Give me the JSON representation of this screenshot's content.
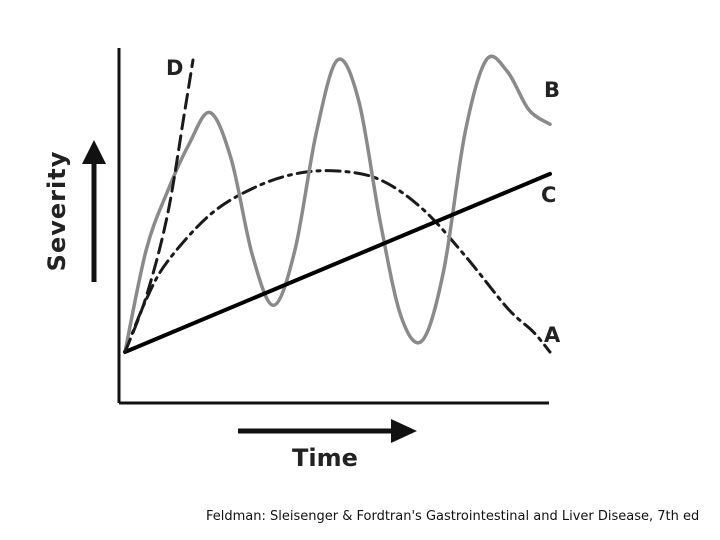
{
  "caption": "Feldman: Sleisenger & Fordtran's Gastrointestinal and Liver Disease, 7th ed",
  "chart_data": {
    "type": "line",
    "xlabel": "Time",
    "ylabel": "Severity",
    "xlim": [
      0,
      10
    ],
    "ylim": [
      0,
      10
    ],
    "grid": false,
    "series": [
      {
        "name": "A",
        "style": "dash-dot",
        "color": "#1a1a1a",
        "x": [
          0,
          0.5,
          1,
          2,
          3,
          4,
          5,
          6,
          7,
          8,
          9,
          9.6,
          10
        ],
        "y": [
          0,
          1.8,
          3.1,
          4.7,
          5.6,
          6.1,
          6.2,
          5.9,
          4.9,
          3.3,
          1.5,
          0.7,
          0
        ]
      },
      {
        "name": "B",
        "style": "solid-gray",
        "color": "#8a8a8a",
        "x": [
          0,
          0.5,
          1,
          1.5,
          2,
          2.5,
          3,
          3.5,
          4,
          4.5,
          5,
          5.5,
          6,
          6.5,
          7,
          7.5,
          8,
          8.5,
          9,
          9.5,
          10
        ],
        "y": [
          0,
          3.5,
          5.5,
          7.1,
          8.2,
          6.6,
          3.3,
          1.6,
          3.5,
          7.5,
          10.0,
          8.6,
          4.5,
          1.2,
          0.4,
          2.8,
          7.5,
          10.0,
          9.6,
          8.3,
          7.8
        ]
      },
      {
        "name": "C",
        "style": "solid-bold",
        "color": "#000000",
        "x": [
          0,
          10
        ],
        "y": [
          0,
          6.1
        ]
      },
      {
        "name": "D",
        "style": "dashed",
        "color": "#1a1a1a",
        "x": [
          0,
          0.5,
          1,
          1.4,
          1.6
        ],
        "y": [
          0,
          1.9,
          4.7,
          8.2,
          10.0
        ]
      }
    ]
  }
}
